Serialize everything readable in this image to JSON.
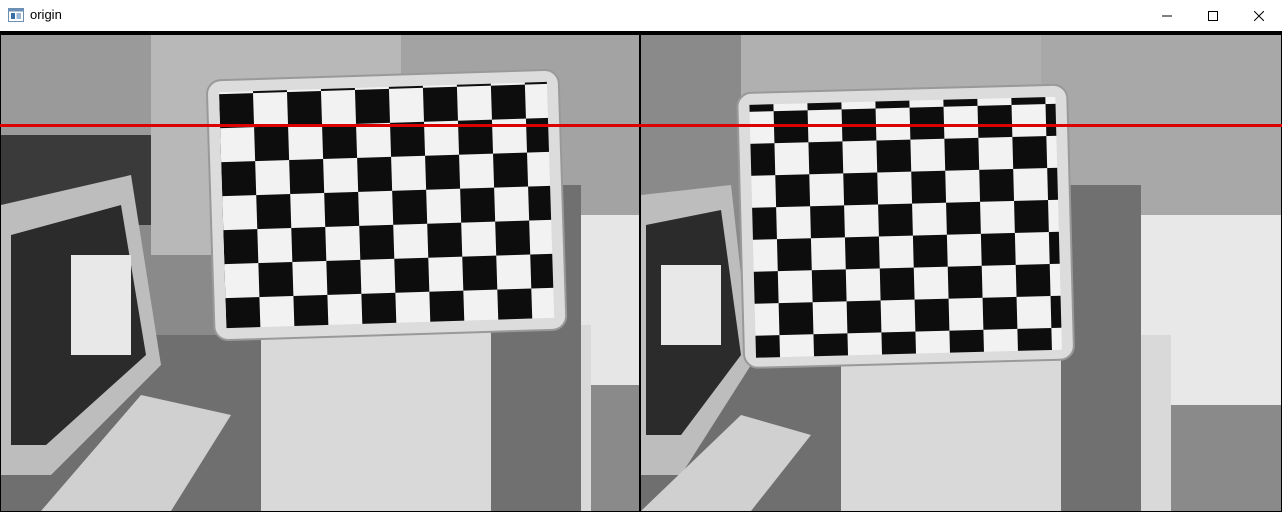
{
  "window": {
    "title": "origin",
    "icon": "opencv-window-icon",
    "controls": {
      "minimize": "minimize-icon",
      "maximize": "maximize-icon",
      "close": "close-icon"
    }
  },
  "content": {
    "views": [
      "left-camera-view",
      "right-camera-view"
    ],
    "line_color": "#dd0000"
  }
}
